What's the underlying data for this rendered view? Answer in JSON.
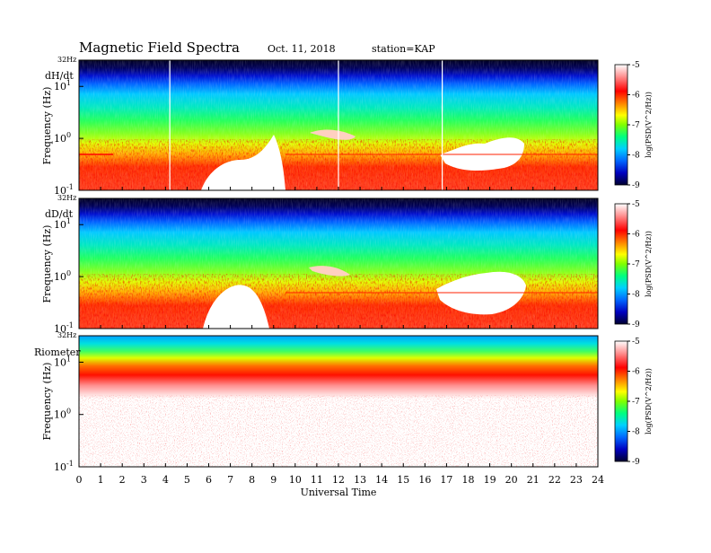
{
  "header": {
    "title": "Magnetic  Field  Spectra",
    "date": "Oct. 11, 2018",
    "station": "station=KAP"
  },
  "colors": {
    "colorbar": [
      "#000030",
      "#0000c0",
      "#0066ff",
      "#00d0ff",
      "#00ff80",
      "#80ff00",
      "#ffff00",
      "#ff8000",
      "#ff0000",
      "#ff9090",
      "#ffffff"
    ]
  },
  "chart_data": [
    {
      "type": "heatmap",
      "panel_label": "dH/dt",
      "top_label": "32Hz",
      "xlabel": "",
      "ylabel": "Frequency (Hz)",
      "y_ticks": [
        {
          "label": "10",
          "exp": "1",
          "value": 10
        },
        {
          "label": "10",
          "exp": "0",
          "value": 1
        },
        {
          "label": "10",
          "exp": "-1",
          "value": 0.1
        }
      ],
      "yscale": "log",
      "ylim": [
        0.1,
        32
      ],
      "xlim": [
        0,
        24
      ],
      "colorbar": {
        "label": "log(PSD(V^2/Hz))",
        "ticks": [
          "-5",
          "-6",
          "-7",
          "-8",
          "-9"
        ],
        "range": [
          -9,
          -5
        ]
      },
      "features": {
        "vertical_lines_ut": [
          4.2,
          12.0,
          16.8
        ],
        "white_regions_ut": [
          [
            5.5,
            9.6
          ],
          [
            16.8,
            20.4
          ]
        ]
      }
    },
    {
      "type": "heatmap",
      "panel_label": "dD/dt",
      "top_label": "32Hz",
      "xlabel": "",
      "ylabel": "Frequency (Hz)",
      "y_ticks": [
        {
          "label": "10",
          "exp": "1",
          "value": 10
        },
        {
          "label": "10",
          "exp": "0",
          "value": 1
        },
        {
          "label": "10",
          "exp": "-1",
          "value": 0.1
        }
      ],
      "yscale": "log",
      "ylim": [
        0.1,
        32
      ],
      "xlim": [
        0,
        24
      ],
      "colorbar": {
        "label": "log(PSD(V^2/Hz))",
        "ticks": [
          "-5",
          "-6",
          "-7",
          "-8",
          "-9"
        ],
        "range": [
          -9,
          -5
        ]
      },
      "features": {
        "vertical_lines_ut": [],
        "white_regions_ut": [
          [
            5.6,
            9.4
          ],
          [
            16.6,
            20.8
          ]
        ]
      }
    },
    {
      "type": "heatmap",
      "panel_label": "Riometer",
      "top_label": "32Hz",
      "xlabel": "Universal Time",
      "ylabel": "Frequency (Hz)",
      "y_ticks": [
        {
          "label": "10",
          "exp": "1",
          "value": 10
        },
        {
          "label": "10",
          "exp": "0",
          "value": 1
        },
        {
          "label": "10",
          "exp": "-1",
          "value": 0.1
        }
      ],
      "yscale": "log",
      "ylim": [
        0.1,
        32
      ],
      "xlim": [
        0,
        24
      ],
      "x_ticks": [
        "0",
        "1",
        "2",
        "3",
        "4",
        "5",
        "6",
        "7",
        "8",
        "9",
        "10",
        "11",
        "12",
        "13",
        "14",
        "15",
        "16",
        "17",
        "18",
        "19",
        "20",
        "21",
        "22",
        "23",
        "24"
      ],
      "colorbar": {
        "label": "log(PSD(V^2/Hz))",
        "ticks": [
          "-5",
          "-6",
          "-7",
          "-8",
          "-9"
        ],
        "range": [
          -9,
          -5
        ]
      }
    }
  ]
}
